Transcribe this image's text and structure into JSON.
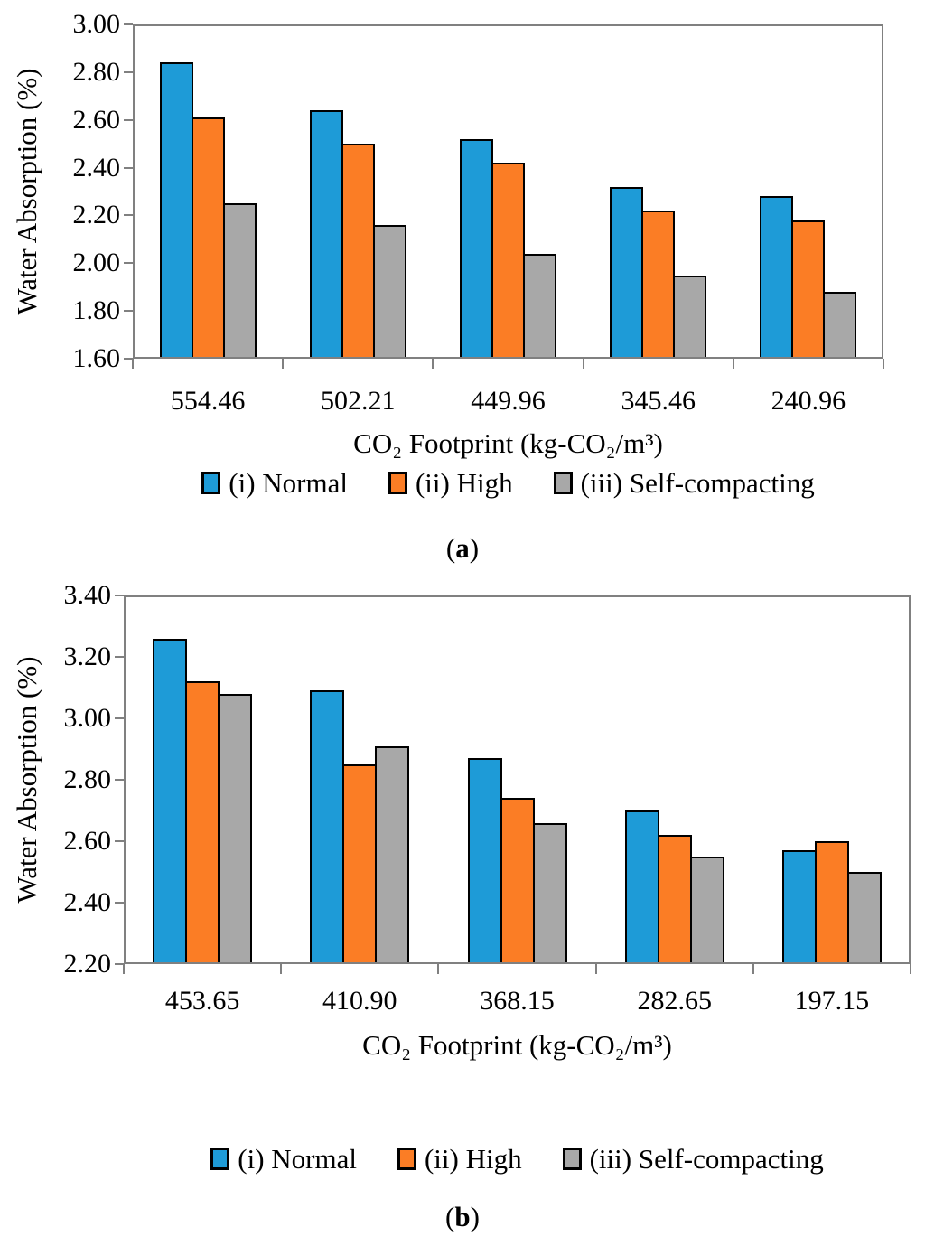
{
  "page": {
    "background": "#ffffff"
  },
  "colors": {
    "series": [
      "#1E9BD7",
      "#FB7D25",
      "#A8A8A8"
    ],
    "bar_border": "#000000",
    "axis": "#808080",
    "text": "#000000"
  },
  "chart_data": [
    {
      "id": "a",
      "type": "bar",
      "title": "",
      "xlabel": "CO₂ Footprint (kg-CO₂/m³)",
      "ylabel": "Water Absorption (%)",
      "ylim": [
        1.6,
        3.0
      ],
      "ytick_step": 0.2,
      "grid": false,
      "legend_position": "bottom",
      "categories": [
        "554.46",
        "502.21",
        "449.96",
        "345.46",
        "240.96"
      ],
      "series": [
        {
          "name": "(i) Normal",
          "values": [
            2.84,
            2.64,
            2.52,
            2.32,
            2.28
          ]
        },
        {
          "name": "(ii) High",
          "values": [
            2.61,
            2.5,
            2.42,
            2.22,
            2.18
          ]
        },
        {
          "name": "(iii) Self-compacting",
          "values": [
            2.25,
            2.16,
            2.04,
            1.95,
            1.88
          ]
        }
      ],
      "caption": {
        "pre": "(",
        "letter": "a",
        "post": ")"
      }
    },
    {
      "id": "b",
      "type": "bar",
      "title": "",
      "xlabel": "CO₂ Footprint (kg-CO₂/m³)",
      "ylabel": "Water Absorption (%)",
      "ylim": [
        2.2,
        3.4
      ],
      "ytick_step": 0.2,
      "grid": false,
      "legend_position": "bottom",
      "categories": [
        "453.65",
        "410.90",
        "368.15",
        "282.65",
        "197.15"
      ],
      "series": [
        {
          "name": "(i) Normal",
          "values": [
            3.26,
            3.09,
            2.87,
            2.7,
            2.57
          ]
        },
        {
          "name": "(ii) High",
          "values": [
            3.12,
            2.85,
            2.74,
            2.62,
            2.6
          ]
        },
        {
          "name": "(iii) Self-compacting",
          "values": [
            3.08,
            2.91,
            2.66,
            2.55,
            2.5
          ]
        }
      ],
      "caption": {
        "pre": "(",
        "letter": "b",
        "post": ")"
      }
    }
  ]
}
